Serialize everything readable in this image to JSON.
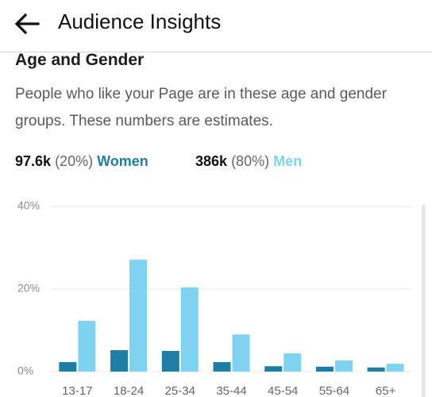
{
  "header": {
    "title": "Audience Insights"
  },
  "section": {
    "title": "Age and Gender",
    "description": "People who like your Page are in these age and gender groups. These numbers are estimates."
  },
  "summary": [
    {
      "count": "97.6k",
      "share": "(20%)"
    },
    {
      "count": "386k",
      "share": "(80%)"
    }
  ],
  "chart_data": {
    "type": "bar",
    "categories": [
      "13-17",
      "18-24",
      "25-34",
      "35-44",
      "45-54",
      "55-64",
      "65+"
    ],
    "series": [
      {
        "name": "Women",
        "color": "#1f7ea6",
        "values": [
          2.3,
          5.2,
          5.0,
          2.3,
          1.3,
          1.2,
          1.0
        ]
      },
      {
        "name": "Men",
        "color": "#7fd3f1",
        "values": [
          12.3,
          27.1,
          20.4,
          9.0,
          4.4,
          2.7,
          1.9
        ]
      }
    ],
    "ylim": [
      0,
      40
    ],
    "yticks": [
      {
        "value": 0,
        "label": "0%"
      },
      {
        "value": 20,
        "label": "20%"
      },
      {
        "value": 40,
        "label": "40%"
      }
    ],
    "grid": true
  }
}
